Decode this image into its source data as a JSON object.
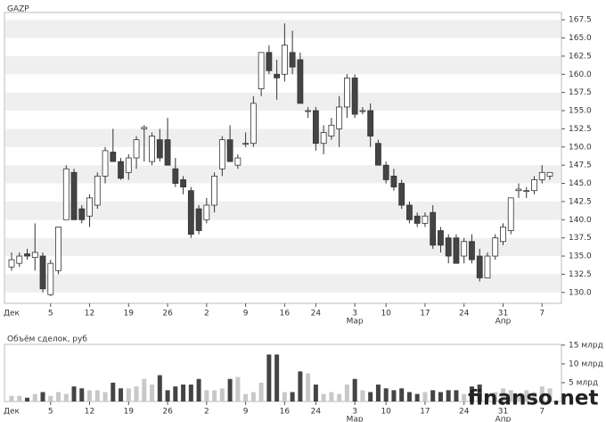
{
  "chart_data": [
    {
      "type": "candlestick",
      "title": "GAZP",
      "categories": [
        null,
        null,
        null,
        null,
        null,
        "5",
        null,
        null,
        null,
        null,
        "12",
        null,
        null,
        null,
        null,
        "19",
        null,
        null,
        null,
        null,
        "26",
        null,
        null,
        null,
        null,
        "2",
        null,
        null,
        null,
        null,
        "9",
        null,
        null,
        null,
        null,
        "16",
        null,
        null,
        null,
        "24",
        null,
        null,
        null,
        null,
        "3",
        null,
        null,
        null,
        "10",
        null,
        null,
        null,
        null,
        "17",
        null,
        null,
        null,
        null,
        "24",
        null,
        null,
        null,
        null,
        "31",
        null,
        null,
        null,
        null,
        "7",
        null
      ],
      "months": [
        "Дек",
        null,
        null,
        null,
        null,
        null,
        null,
        null,
        null,
        null,
        null,
        null,
        null,
        null,
        null,
        null,
        null,
        null,
        null,
        null,
        null,
        null,
        null,
        null,
        null,
        null,
        null,
        null,
        null,
        null,
        null,
        null,
        null,
        null,
        null,
        null,
        null,
        null,
        null,
        null,
        null,
        null,
        null,
        null,
        "Мар",
        null,
        null,
        null,
        null,
        null,
        null,
        null,
        null,
        null,
        null,
        null,
        null,
        null,
        null,
        null,
        null,
        null,
        null,
        "Апр",
        null,
        null,
        null,
        null,
        null,
        null
      ],
      "open": [
        133.5,
        134,
        135.3,
        134.8,
        135,
        129.7,
        133,
        140,
        146.5,
        141.5,
        140.5,
        142,
        146,
        149.3,
        148,
        146.5,
        148.5,
        152.5,
        148,
        151,
        151,
        147,
        145.5,
        144,
        141.5,
        140,
        142,
        147,
        151,
        147.5,
        150.5,
        150.5,
        158,
        163,
        160,
        160,
        163,
        162,
        155,
        155,
        150.5,
        151.5,
        152.5,
        155.5,
        159.5,
        155,
        155,
        150.5,
        147.5,
        146,
        145,
        142,
        140.5,
        139.5,
        141,
        138.5,
        137.5,
        137.5,
        135,
        137,
        135,
        132,
        135,
        137,
        138.5,
        144,
        144,
        144,
        145.5,
        146
      ],
      "high": [
        135.5,
        135.5,
        136,
        139.5,
        135.5,
        134.5,
        139,
        147.5,
        147,
        142,
        143.5,
        146.5,
        150,
        152.5,
        148.5,
        149,
        151.5,
        153,
        152,
        152.5,
        154,
        148.5,
        146,
        144.5,
        142,
        143,
        146.5,
        151.5,
        153,
        149,
        152,
        157,
        163,
        164,
        162,
        167,
        166,
        163,
        155.5,
        155.5,
        153,
        154,
        157,
        160,
        160,
        155.5,
        156,
        151,
        148,
        147,
        145.5,
        142.5,
        141,
        141,
        142,
        139,
        138,
        138,
        137.5,
        138,
        136,
        135.5,
        138,
        139.5,
        143,
        145,
        144.5,
        146,
        147.5,
        146.5
      ],
      "low": [
        133,
        133.5,
        134.5,
        133,
        130,
        129.5,
        132.5,
        140,
        140,
        139.5,
        139,
        141.5,
        145,
        148,
        145.5,
        145.5,
        147,
        148,
        147.5,
        148,
        147.5,
        144.5,
        143.5,
        137.5,
        138,
        139.5,
        141,
        146,
        148,
        147,
        150,
        150,
        157,
        160,
        156.5,
        159,
        160,
        156,
        154,
        149.5,
        149,
        151,
        150,
        154,
        154,
        154.5,
        150,
        147.5,
        145,
        144,
        141.5,
        139.5,
        139,
        139,
        136,
        135.5,
        134,
        134,
        134,
        134,
        131.5,
        132,
        134.5,
        136.5,
        138,
        143,
        143,
        143.5,
        145,
        145.5
      ],
      "close": [
        134.5,
        135,
        135,
        135.5,
        130.5,
        134,
        139,
        147,
        140,
        140,
        143,
        146,
        149.5,
        148,
        145.7,
        148.5,
        151,
        152.7,
        151.5,
        148.5,
        147.5,
        145,
        144.5,
        138,
        138.5,
        142,
        146,
        151,
        148,
        148.5,
        150.5,
        156,
        163,
        160.5,
        159.5,
        164,
        161,
        156,
        155,
        150.5,
        152,
        153,
        155.5,
        159.5,
        154.5,
        155,
        151.5,
        147.5,
        145.5,
        144.5,
        142,
        140,
        139.5,
        140.5,
        136.5,
        136.5,
        135,
        134,
        137,
        134.5,
        132,
        135,
        137.5,
        139,
        143,
        144.2,
        144,
        145.5,
        146.5,
        146.5
      ],
      "up_color": "#ffffff",
      "down_color": "#444444",
      "wick_color": "#333333",
      "ylim": [
        128.5,
        168.5
      ],
      "yticks": [
        {
          "value": 130,
          "label": "130.0"
        },
        {
          "value": 132.5,
          "label": "132.5"
        },
        {
          "value": 135,
          "label": "135.0"
        },
        {
          "value": 137.5,
          "label": "137.5"
        },
        {
          "value": 140,
          "label": "140.0"
        },
        {
          "value": 142.5,
          "label": "142.5"
        },
        {
          "value": 145,
          "label": "145.0"
        },
        {
          "value": 147.5,
          "label": "147.5"
        },
        {
          "value": 150,
          "label": "150.0"
        },
        {
          "value": 152.5,
          "label": "152.5"
        },
        {
          "value": 155,
          "label": "155.0"
        },
        {
          "value": 157.5,
          "label": "157.5"
        },
        {
          "value": 160,
          "label": "160.0"
        },
        {
          "value": 162.5,
          "label": "162.5"
        },
        {
          "value": 165,
          "label": "165.0"
        },
        {
          "value": 167.5,
          "label": "167.5"
        }
      ],
      "grid": true
    },
    {
      "type": "bar",
      "title": "Объём сделок, руб",
      "categories": [
        null,
        null,
        null,
        null,
        null,
        "5",
        null,
        null,
        null,
        null,
        "12",
        null,
        null,
        null,
        null,
        "19",
        null,
        null,
        null,
        null,
        "26",
        null,
        null,
        null,
        null,
        "2",
        null,
        null,
        null,
        null,
        "9",
        null,
        null,
        null,
        null,
        "16",
        null,
        null,
        null,
        "24",
        null,
        null,
        null,
        null,
        "3",
        null,
        null,
        null,
        "10",
        null,
        null,
        null,
        null,
        "17",
        null,
        null,
        null,
        null,
        "24",
        null,
        null,
        null,
        null,
        "31",
        null,
        null,
        null,
        null,
        "7",
        null
      ],
      "months": [
        "Дек",
        null,
        null,
        null,
        null,
        null,
        null,
        null,
        null,
        null,
        null,
        null,
        null,
        null,
        null,
        null,
        null,
        null,
        null,
        null,
        null,
        null,
        null,
        null,
        null,
        null,
        null,
        null,
        null,
        null,
        null,
        null,
        null,
        null,
        null,
        null,
        null,
        null,
        null,
        null,
        null,
        null,
        null,
        null,
        "Мар",
        null,
        null,
        null,
        null,
        null,
        null,
        null,
        null,
        null,
        null,
        null,
        null,
        null,
        null,
        null,
        null,
        null,
        null,
        "Апр",
        null,
        null,
        null,
        null,
        null,
        null
      ],
      "values": [
        1.5,
        1.5,
        1,
        2,
        2.5,
        1.5,
        2.5,
        2,
        4,
        3.5,
        3,
        3,
        2.5,
        5,
        3.5,
        3.5,
        4,
        6,
        4.5,
        7,
        3,
        4,
        4.5,
        4.5,
        6,
        3,
        3,
        3.5,
        6,
        6.5,
        2,
        2.5,
        5,
        12.5,
        12.5,
        2.5,
        2.5,
        8,
        7.5,
        4.5,
        2,
        2.5,
        2,
        4.5,
        6,
        3,
        2.5,
        4.5,
        3.5,
        3,
        3.5,
        2.5,
        2,
        2.5,
        3,
        2.5,
        3,
        3,
        2,
        4,
        4.5,
        2,
        2.5,
        3.5,
        3,
        2,
        3,
        2.5,
        4,
        3.5
      ],
      "up_color": "#c8c8c8",
      "down_color": "#444444",
      "ylim": [
        0,
        15.2
      ],
      "yticks": [
        {
          "value": 5,
          "label": "5 млрд"
        },
        {
          "value": 10,
          "label": "10 млрд"
        },
        {
          "value": 15,
          "label": "15 млрд"
        }
      ]
    }
  ],
  "watermark": "finanso.net"
}
